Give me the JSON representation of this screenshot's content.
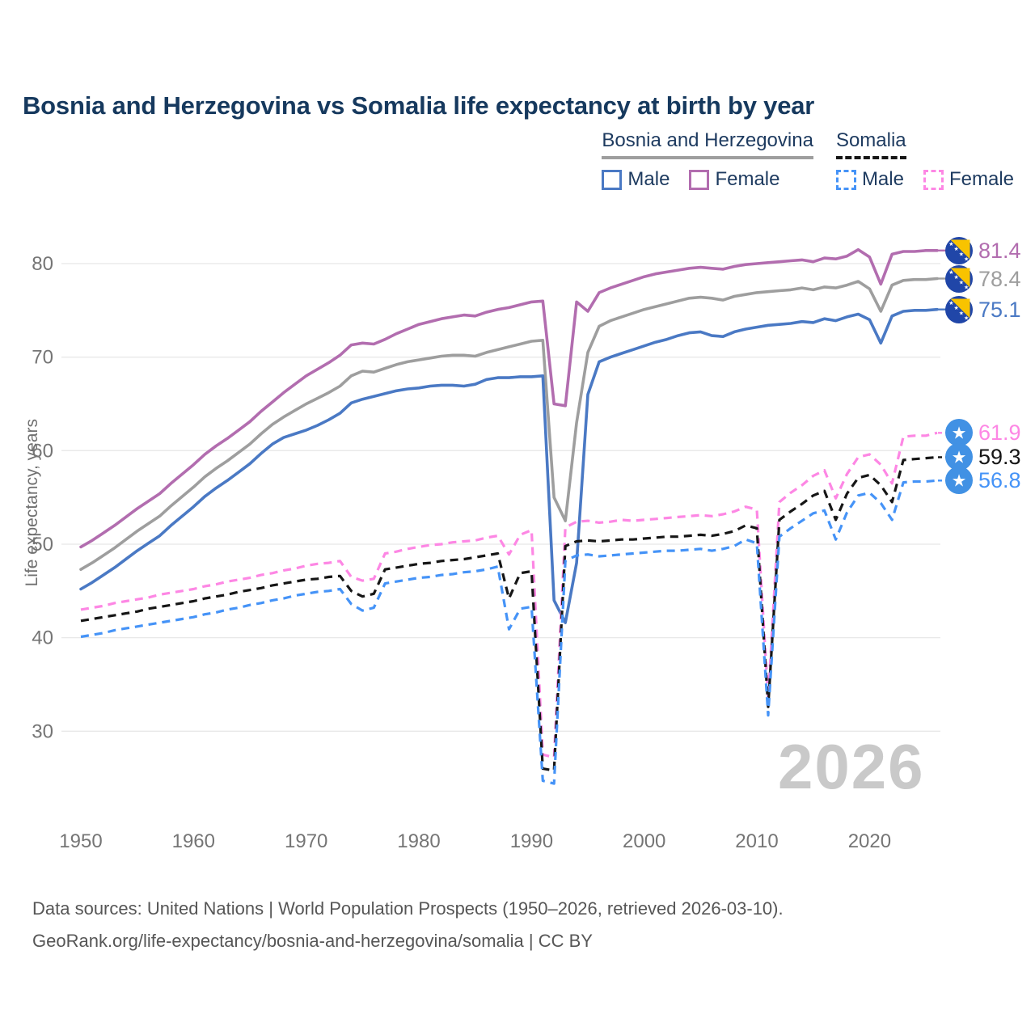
{
  "title": "Bosnia and Herzegovina vs Somalia life expectancy at birth by year",
  "watermark": "2026",
  "legend": {
    "groups": [
      {
        "id": "bih",
        "label": "Bosnia and Herzegovina",
        "rule_style": "solid",
        "rule_color": "#9e9e9e",
        "items": [
          {
            "id": "bih_male",
            "label": "Male"
          },
          {
            "id": "bih_female",
            "label": "Female"
          }
        ]
      },
      {
        "id": "som",
        "label": "Somalia",
        "rule_style": "dashed",
        "rule_color": "#161616",
        "items": [
          {
            "id": "som_male",
            "label": "Male"
          },
          {
            "id": "som_female",
            "label": "Female"
          }
        ]
      }
    ]
  },
  "y_axis": {
    "title": "Life expectancy, years",
    "ticks": [
      80,
      70,
      60,
      50,
      40,
      30
    ]
  },
  "x_axis": {
    "ticks": [
      1950,
      1960,
      1970,
      1980,
      1990,
      2000,
      2010,
      2020
    ]
  },
  "end_labels": [
    {
      "series": "bih_female",
      "value": "81.4",
      "flag": "bih"
    },
    {
      "series": "bih_total",
      "value": "78.4",
      "flag": "bih"
    },
    {
      "series": "bih_male",
      "value": "75.1",
      "flag": "bih"
    },
    {
      "series": "som_female",
      "value": "61.9",
      "flag": "som"
    },
    {
      "series": "som_total",
      "value": "59.3",
      "flag": "som"
    },
    {
      "series": "som_male",
      "value": "56.8",
      "flag": "som"
    }
  ],
  "footer": {
    "line1": "Data sources: United Nations | World Population Prospects (1950–2026, retrieved 2026-03-10).",
    "line2": "GeoRank.org/life-expectancy/bosnia-and-herzegovina/somalia | CC BY"
  },
  "colors": {
    "title_text": "#16395e",
    "axis_text": "#757575",
    "gridline": "#e8e8e8",
    "watermark": "#c9c9c9",
    "footer_text": "#565656",
    "bih_male": "#4a79c4",
    "bih_female": "#b26daf",
    "bih_total": "#9e9e9e",
    "som_male": "#4593f7",
    "som_female": "#fd87e4",
    "som_total": "#161616"
  },
  "chart_data": {
    "type": "line",
    "title": "Bosnia and Herzegovina vs Somalia life expectancy at birth by year",
    "xlabel": "",
    "ylabel": "Life expectancy, years",
    "xlim": [
      1950,
      2026
    ],
    "ylim": [
      22,
      84
    ],
    "grid": "horizontal",
    "legend_position": "top-right",
    "x": [
      1950,
      1951,
      1952,
      1953,
      1954,
      1955,
      1956,
      1957,
      1958,
      1959,
      1960,
      1961,
      1962,
      1963,
      1964,
      1965,
      1966,
      1967,
      1968,
      1969,
      1970,
      1971,
      1972,
      1973,
      1974,
      1975,
      1976,
      1977,
      1978,
      1979,
      1980,
      1981,
      1982,
      1983,
      1984,
      1985,
      1986,
      1987,
      1988,
      1989,
      1990,
      1991,
      1992,
      1993,
      1994,
      1995,
      1996,
      1997,
      1998,
      1999,
      2000,
      2001,
      2002,
      2003,
      2004,
      2005,
      2006,
      2007,
      2008,
      2009,
      2010,
      2011,
      2012,
      2013,
      2014,
      2015,
      2016,
      2017,
      2018,
      2019,
      2020,
      2021,
      2022,
      2023,
      2024,
      2025,
      2026
    ],
    "series": [
      {
        "id": "bih_female",
        "name": "Bosnia and Herzegovina — Female",
        "color": "#b26daf",
        "dash": "solid",
        "values": [
          49.7,
          50.4,
          51.2,
          52.0,
          52.9,
          53.8,
          54.6,
          55.4,
          56.5,
          57.5,
          58.5,
          59.6,
          60.5,
          61.3,
          62.2,
          63.1,
          64.2,
          65.2,
          66.2,
          67.1,
          68.0,
          68.7,
          69.4,
          70.2,
          71.3,
          71.5,
          71.4,
          71.9,
          72.5,
          73.0,
          73.5,
          73.8,
          74.1,
          74.3,
          74.5,
          74.4,
          74.8,
          75.1,
          75.3,
          75.6,
          75.9,
          76.0,
          65.0,
          64.8,
          75.9,
          74.9,
          76.9,
          77.4,
          77.8,
          78.2,
          78.6,
          78.9,
          79.1,
          79.3,
          79.5,
          79.6,
          79.5,
          79.4,
          79.7,
          79.9,
          80.0,
          80.1,
          80.2,
          80.3,
          80.4,
          80.2,
          80.6,
          80.5,
          80.8,
          81.5,
          80.7,
          77.8,
          81.0,
          81.3,
          81.3,
          81.4,
          81.4
        ]
      },
      {
        "id": "bih_total",
        "name": "Bosnia and Herzegovina — Both sexes",
        "color": "#9e9e9e",
        "dash": "solid",
        "values": [
          47.3,
          48.0,
          48.8,
          49.6,
          50.5,
          51.4,
          52.2,
          53.0,
          54.1,
          55.1,
          56.1,
          57.2,
          58.1,
          58.9,
          59.8,
          60.7,
          61.8,
          62.8,
          63.6,
          64.3,
          65.0,
          65.6,
          66.2,
          66.9,
          68.0,
          68.5,
          68.4,
          68.8,
          69.2,
          69.5,
          69.7,
          69.9,
          70.1,
          70.2,
          70.2,
          70.1,
          70.5,
          70.8,
          71.1,
          71.4,
          71.7,
          71.8,
          55.0,
          52.5,
          63.0,
          70.5,
          73.3,
          73.9,
          74.3,
          74.7,
          75.1,
          75.4,
          75.7,
          76.0,
          76.3,
          76.4,
          76.3,
          76.1,
          76.5,
          76.7,
          76.9,
          77.0,
          77.1,
          77.2,
          77.4,
          77.2,
          77.5,
          77.4,
          77.7,
          78.1,
          77.3,
          74.9,
          77.7,
          78.2,
          78.3,
          78.3,
          78.4
        ]
      },
      {
        "id": "bih_male",
        "name": "Bosnia and Herzegovina — Male",
        "color": "#4a79c4",
        "dash": "solid",
        "values": [
          45.2,
          45.9,
          46.7,
          47.5,
          48.4,
          49.3,
          50.1,
          50.9,
          52.0,
          53.0,
          54.0,
          55.1,
          56.0,
          56.8,
          57.7,
          58.6,
          59.7,
          60.7,
          61.4,
          61.8,
          62.2,
          62.7,
          63.3,
          64.0,
          65.1,
          65.5,
          65.8,
          66.1,
          66.4,
          66.6,
          66.7,
          66.9,
          67.0,
          67.0,
          66.9,
          67.1,
          67.6,
          67.8,
          67.8,
          67.9,
          67.9,
          68.0,
          44.0,
          41.6,
          48.0,
          66.0,
          69.5,
          70.0,
          70.4,
          70.8,
          71.2,
          71.6,
          71.9,
          72.3,
          72.6,
          72.7,
          72.3,
          72.2,
          72.7,
          73.0,
          73.2,
          73.4,
          73.5,
          73.6,
          73.8,
          73.7,
          74.1,
          73.9,
          74.3,
          74.6,
          74.0,
          71.5,
          74.4,
          74.9,
          75.0,
          75.0,
          75.1
        ]
      },
      {
        "id": "som_female",
        "name": "Somalia — Female",
        "color": "#fd87e4",
        "dash": "dashed",
        "values": [
          43.0,
          43.2,
          43.4,
          43.7,
          43.9,
          44.1,
          44.3,
          44.6,
          44.8,
          45.0,
          45.2,
          45.5,
          45.7,
          46.0,
          46.2,
          46.4,
          46.7,
          46.9,
          47.2,
          47.4,
          47.7,
          47.9,
          48.0,
          48.2,
          46.5,
          46.1,
          46.3,
          49.0,
          49.2,
          49.5,
          49.7,
          49.9,
          50.0,
          50.2,
          50.3,
          50.4,
          50.7,
          50.9,
          48.9,
          51.0,
          51.5,
          27.5,
          27.2,
          51.8,
          52.4,
          52.5,
          52.3,
          52.4,
          52.6,
          52.5,
          52.6,
          52.7,
          52.8,
          52.9,
          53.0,
          53.1,
          53.0,
          53.2,
          53.5,
          54.0,
          53.7,
          33.5,
          54.5,
          55.5,
          56.3,
          57.3,
          57.9,
          54.9,
          57.5,
          59.3,
          59.6,
          58.5,
          56.5,
          61.5,
          61.6,
          61.6,
          61.9
        ]
      },
      {
        "id": "som_total",
        "name": "Somalia — Both sexes",
        "color": "#161616",
        "dash": "dashed",
        "values": [
          41.8,
          42.0,
          42.2,
          42.4,
          42.6,
          42.8,
          43.1,
          43.3,
          43.5,
          43.7,
          43.9,
          44.2,
          44.4,
          44.6,
          44.9,
          45.1,
          45.3,
          45.6,
          45.8,
          46.0,
          46.2,
          46.3,
          46.5,
          46.6,
          45.0,
          44.4,
          44.7,
          47.3,
          47.5,
          47.7,
          47.9,
          48.0,
          48.2,
          48.3,
          48.4,
          48.6,
          48.8,
          49.0,
          44.2,
          46.9,
          47.1,
          26.0,
          25.8,
          49.8,
          50.3,
          50.4,
          50.3,
          50.4,
          50.5,
          50.5,
          50.6,
          50.7,
          50.8,
          50.8,
          50.9,
          51.0,
          50.9,
          51.1,
          51.4,
          52.0,
          51.7,
          32.6,
          52.6,
          53.5,
          54.3,
          55.2,
          55.7,
          52.6,
          55.4,
          57.1,
          57.4,
          56.3,
          54.5,
          59.0,
          59.1,
          59.2,
          59.3
        ]
      },
      {
        "id": "som_male",
        "name": "Somalia — Male",
        "color": "#4593f7",
        "dash": "dashed",
        "values": [
          40.1,
          40.3,
          40.5,
          40.8,
          41.0,
          41.2,
          41.4,
          41.6,
          41.8,
          42.0,
          42.2,
          42.5,
          42.7,
          43.0,
          43.2,
          43.5,
          43.7,
          44.0,
          44.2,
          44.5,
          44.7,
          44.9,
          45.0,
          45.2,
          43.6,
          42.9,
          43.2,
          45.8,
          46.0,
          46.2,
          46.4,
          46.5,
          46.7,
          46.8,
          47.0,
          47.1,
          47.3,
          47.6,
          40.9,
          43.1,
          43.3,
          24.7,
          24.4,
          48.2,
          48.8,
          48.9,
          48.7,
          48.8,
          48.9,
          49.0,
          49.1,
          49.2,
          49.3,
          49.3,
          49.4,
          49.5,
          49.3,
          49.5,
          49.8,
          50.5,
          50.1,
          31.7,
          50.8,
          51.7,
          52.5,
          53.3,
          53.6,
          50.5,
          53.4,
          55.2,
          55.5,
          54.4,
          52.6,
          56.6,
          56.7,
          56.7,
          56.8
        ]
      }
    ]
  }
}
